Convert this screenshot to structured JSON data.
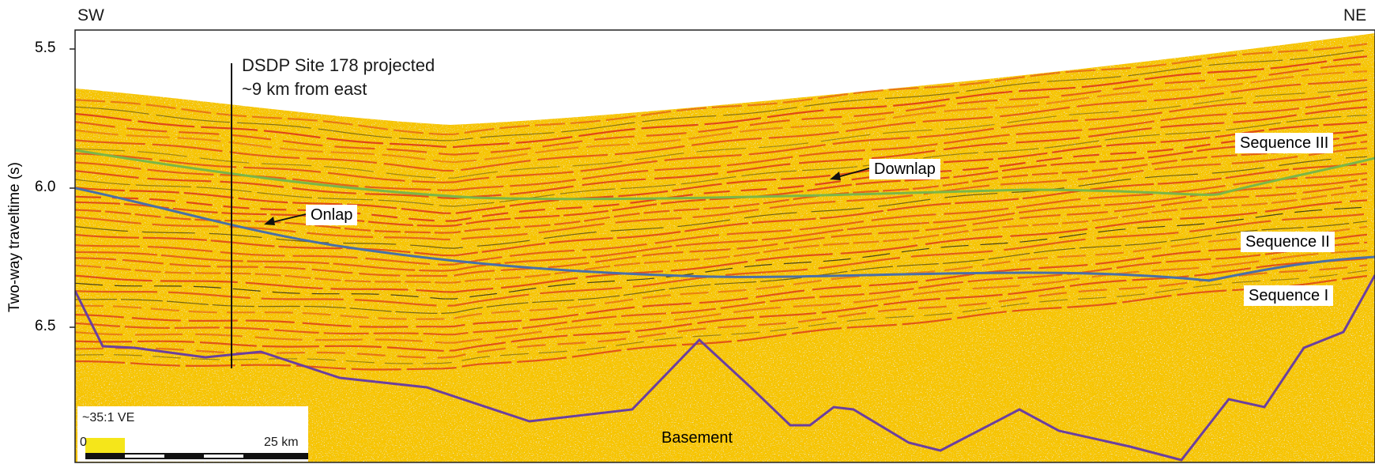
{
  "orientation": {
    "left": "SW",
    "right": "NE"
  },
  "axis": {
    "ylabel": "Two-way traveltime (s)",
    "ticks": [
      "5.5",
      "6.0",
      "6.5"
    ]
  },
  "site": {
    "line1": "DSDP Site 178 projected",
    "line2": "~9 km from east"
  },
  "sequences": [
    "Sequence III",
    "Sequence II",
    "Sequence I"
  ],
  "features": {
    "downlap": "Downlap",
    "onlap": "Onlap",
    "basement": "Basement"
  },
  "scale": {
    "ve": "~35:1 VE",
    "start": "0",
    "end": "25 km"
  },
  "colors": {
    "green_horizon": "#7ab648",
    "blue_horizon": "#4a6fa8",
    "basement_horizon": "#6b3fa0",
    "background": "#f5c400",
    "reflector_red": "#d8231c",
    "reflector_black": "#1a1a1a"
  }
}
